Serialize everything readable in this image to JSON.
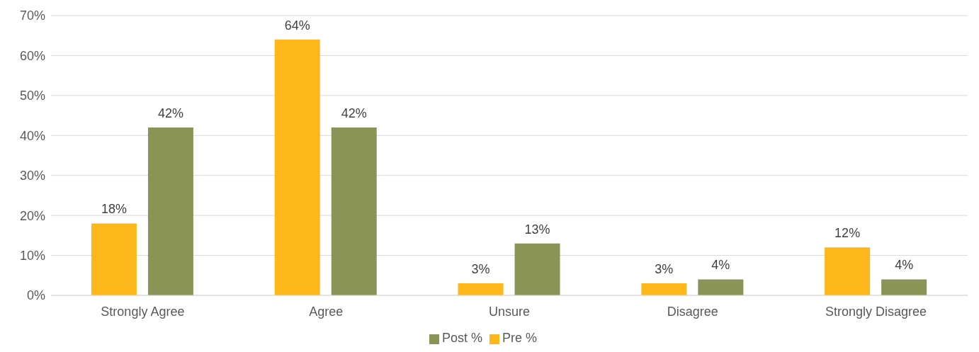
{
  "chart_data": {
    "type": "bar",
    "categories": [
      "Strongly Agree",
      "Agree",
      "Unsure",
      "Disagree",
      "Strongly Disagree"
    ],
    "series": [
      {
        "name": "Pre %",
        "color": "#fdb71a",
        "values": [
          18,
          64,
          3,
          3,
          12
        ],
        "value_labels": [
          "18%",
          "64%",
          "3%",
          "3%",
          "12%"
        ]
      },
      {
        "name": "Post %",
        "color": "#8a9457",
        "values": [
          42,
          42,
          13,
          4,
          4
        ],
        "value_labels": [
          "42%",
          "42%",
          "13%",
          "4%",
          "4%"
        ]
      }
    ],
    "ylim": [
      0,
      70
    ],
    "yticks": [
      {
        "value": 0,
        "label": "0%"
      },
      {
        "value": 10,
        "label": "10%"
      },
      {
        "value": 20,
        "label": "20%"
      },
      {
        "value": 30,
        "label": "30%"
      },
      {
        "value": 40,
        "label": "40%"
      },
      {
        "value": 50,
        "label": "50%"
      },
      {
        "value": 60,
        "label": "60%"
      },
      {
        "value": 70,
        "label": "70%"
      }
    ],
    "grid": "y",
    "legend": "bottom"
  }
}
